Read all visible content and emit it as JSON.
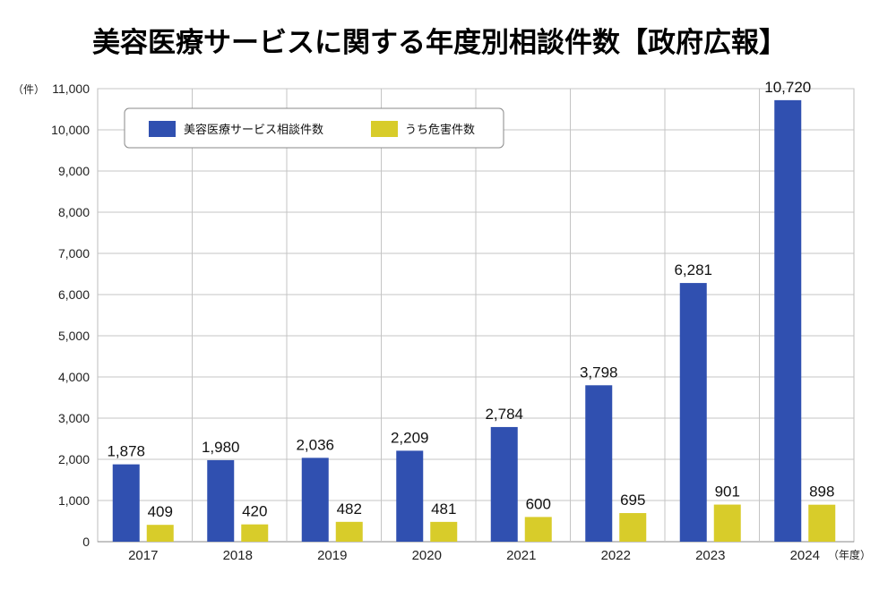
{
  "chart_data": {
    "type": "bar",
    "title": "美容医療サービスに関する年度別相談件数【政府広報】",
    "ylabel": "（件）",
    "xlabel": "（年度）",
    "ylim": [
      0,
      11000
    ],
    "y_ticks": [
      0,
      1000,
      2000,
      3000,
      4000,
      5000,
      6000,
      7000,
      8000,
      9000,
      10000,
      11000
    ],
    "y_tick_labels": [
      "0",
      "1,000",
      "2,000",
      "3,000",
      "4,000",
      "5,000",
      "6,000",
      "7,000",
      "8,000",
      "9,000",
      "10,000",
      "11,000"
    ],
    "grid": true,
    "legend_position": "top-left",
    "categories": [
      "2017",
      "2018",
      "2019",
      "2020",
      "2021",
      "2022",
      "2023",
      "2024"
    ],
    "series": [
      {
        "name": "美容医療サービス相談件数",
        "color": "#3050b0",
        "values": [
          1878,
          1980,
          2036,
          2209,
          2784,
          3798,
          6281,
          10720
        ],
        "labels": [
          "1,878",
          "1,980",
          "2,036",
          "2,209",
          "2,784",
          "3,798",
          "6,281",
          "10,720"
        ]
      },
      {
        "name": "うち危害件数",
        "color": "#d8cc2a",
        "values": [
          409,
          420,
          482,
          481,
          600,
          695,
          901,
          898
        ],
        "labels": [
          "409",
          "420",
          "482",
          "481",
          "600",
          "695",
          "901",
          "898"
        ]
      }
    ]
  }
}
